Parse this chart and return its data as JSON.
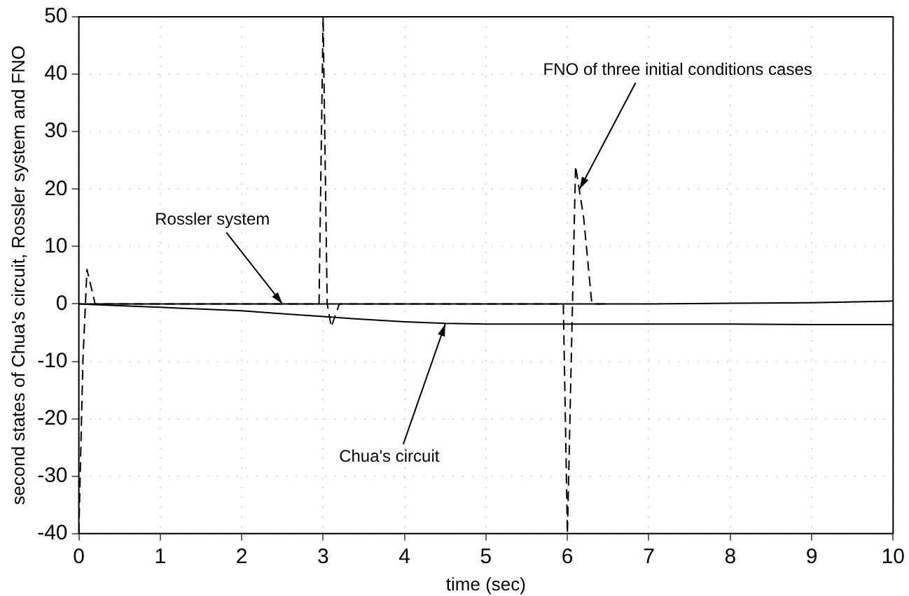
{
  "chart_data": {
    "type": "line",
    "xlabel": "time (sec)",
    "ylabel": "second states of Chua's circuit, Rossler system and FNO",
    "xlim": [
      0,
      10
    ],
    "ylim": [
      -40,
      50
    ],
    "xticks": [
      0,
      1,
      2,
      3,
      4,
      5,
      6,
      7,
      8,
      9,
      10
    ],
    "yticks": [
      -40,
      -30,
      -20,
      -10,
      0,
      10,
      20,
      30,
      40,
      50
    ],
    "grid": true,
    "marker": "none",
    "series": [
      {
        "color": "#000000",
        "line_style": "solid",
        "x": [
          0,
          0.5,
          1,
          1.5,
          2,
          2.5,
          3,
          3.5,
          4,
          5,
          6,
          7,
          8,
          9,
          10
        ],
        "values": [
          0,
          0,
          0,
          0,
          0,
          0,
          0,
          0,
          0,
          0,
          0,
          0,
          0.1,
          0.2,
          0.5
        ]
      },
      {
        "color": "#000000",
        "line_style": "solid",
        "x": [
          0,
          0.5,
          1,
          1.5,
          2,
          2.5,
          3,
          3.5,
          4,
          4.5,
          5,
          6,
          7,
          8,
          9,
          10
        ],
        "values": [
          0,
          -0.3,
          -0.6,
          -0.9,
          -1.2,
          -1.7,
          -2.2,
          -2.7,
          -3.1,
          -3.4,
          -3.5,
          -3.5,
          -3.5,
          -3.5,
          -3.6,
          -3.6
        ]
      },
      {
        "color": "#000000",
        "line_style": "dashed",
        "x": [
          0,
          0.05,
          0.1,
          0.15,
          0.2,
          2.95,
          3.0,
          3.05,
          3.1,
          3.2,
          5.95,
          6.0,
          6.1,
          6.2,
          6.3,
          6.5
        ],
        "values": [
          -40,
          -10,
          6,
          3,
          0,
          0,
          50,
          0,
          -4,
          0,
          0,
          -40,
          24,
          15,
          0,
          0
        ]
      }
    ],
    "annotations": [
      {
        "text": "Rossler system",
        "x": 2.5,
        "y": 0
      },
      {
        "text": "Chua's circuit",
        "x": 4.5,
        "y": -3.5
      },
      {
        "text": "FNO of three initial conditions cases",
        "x": 6.15,
        "y": 20
      }
    ]
  }
}
